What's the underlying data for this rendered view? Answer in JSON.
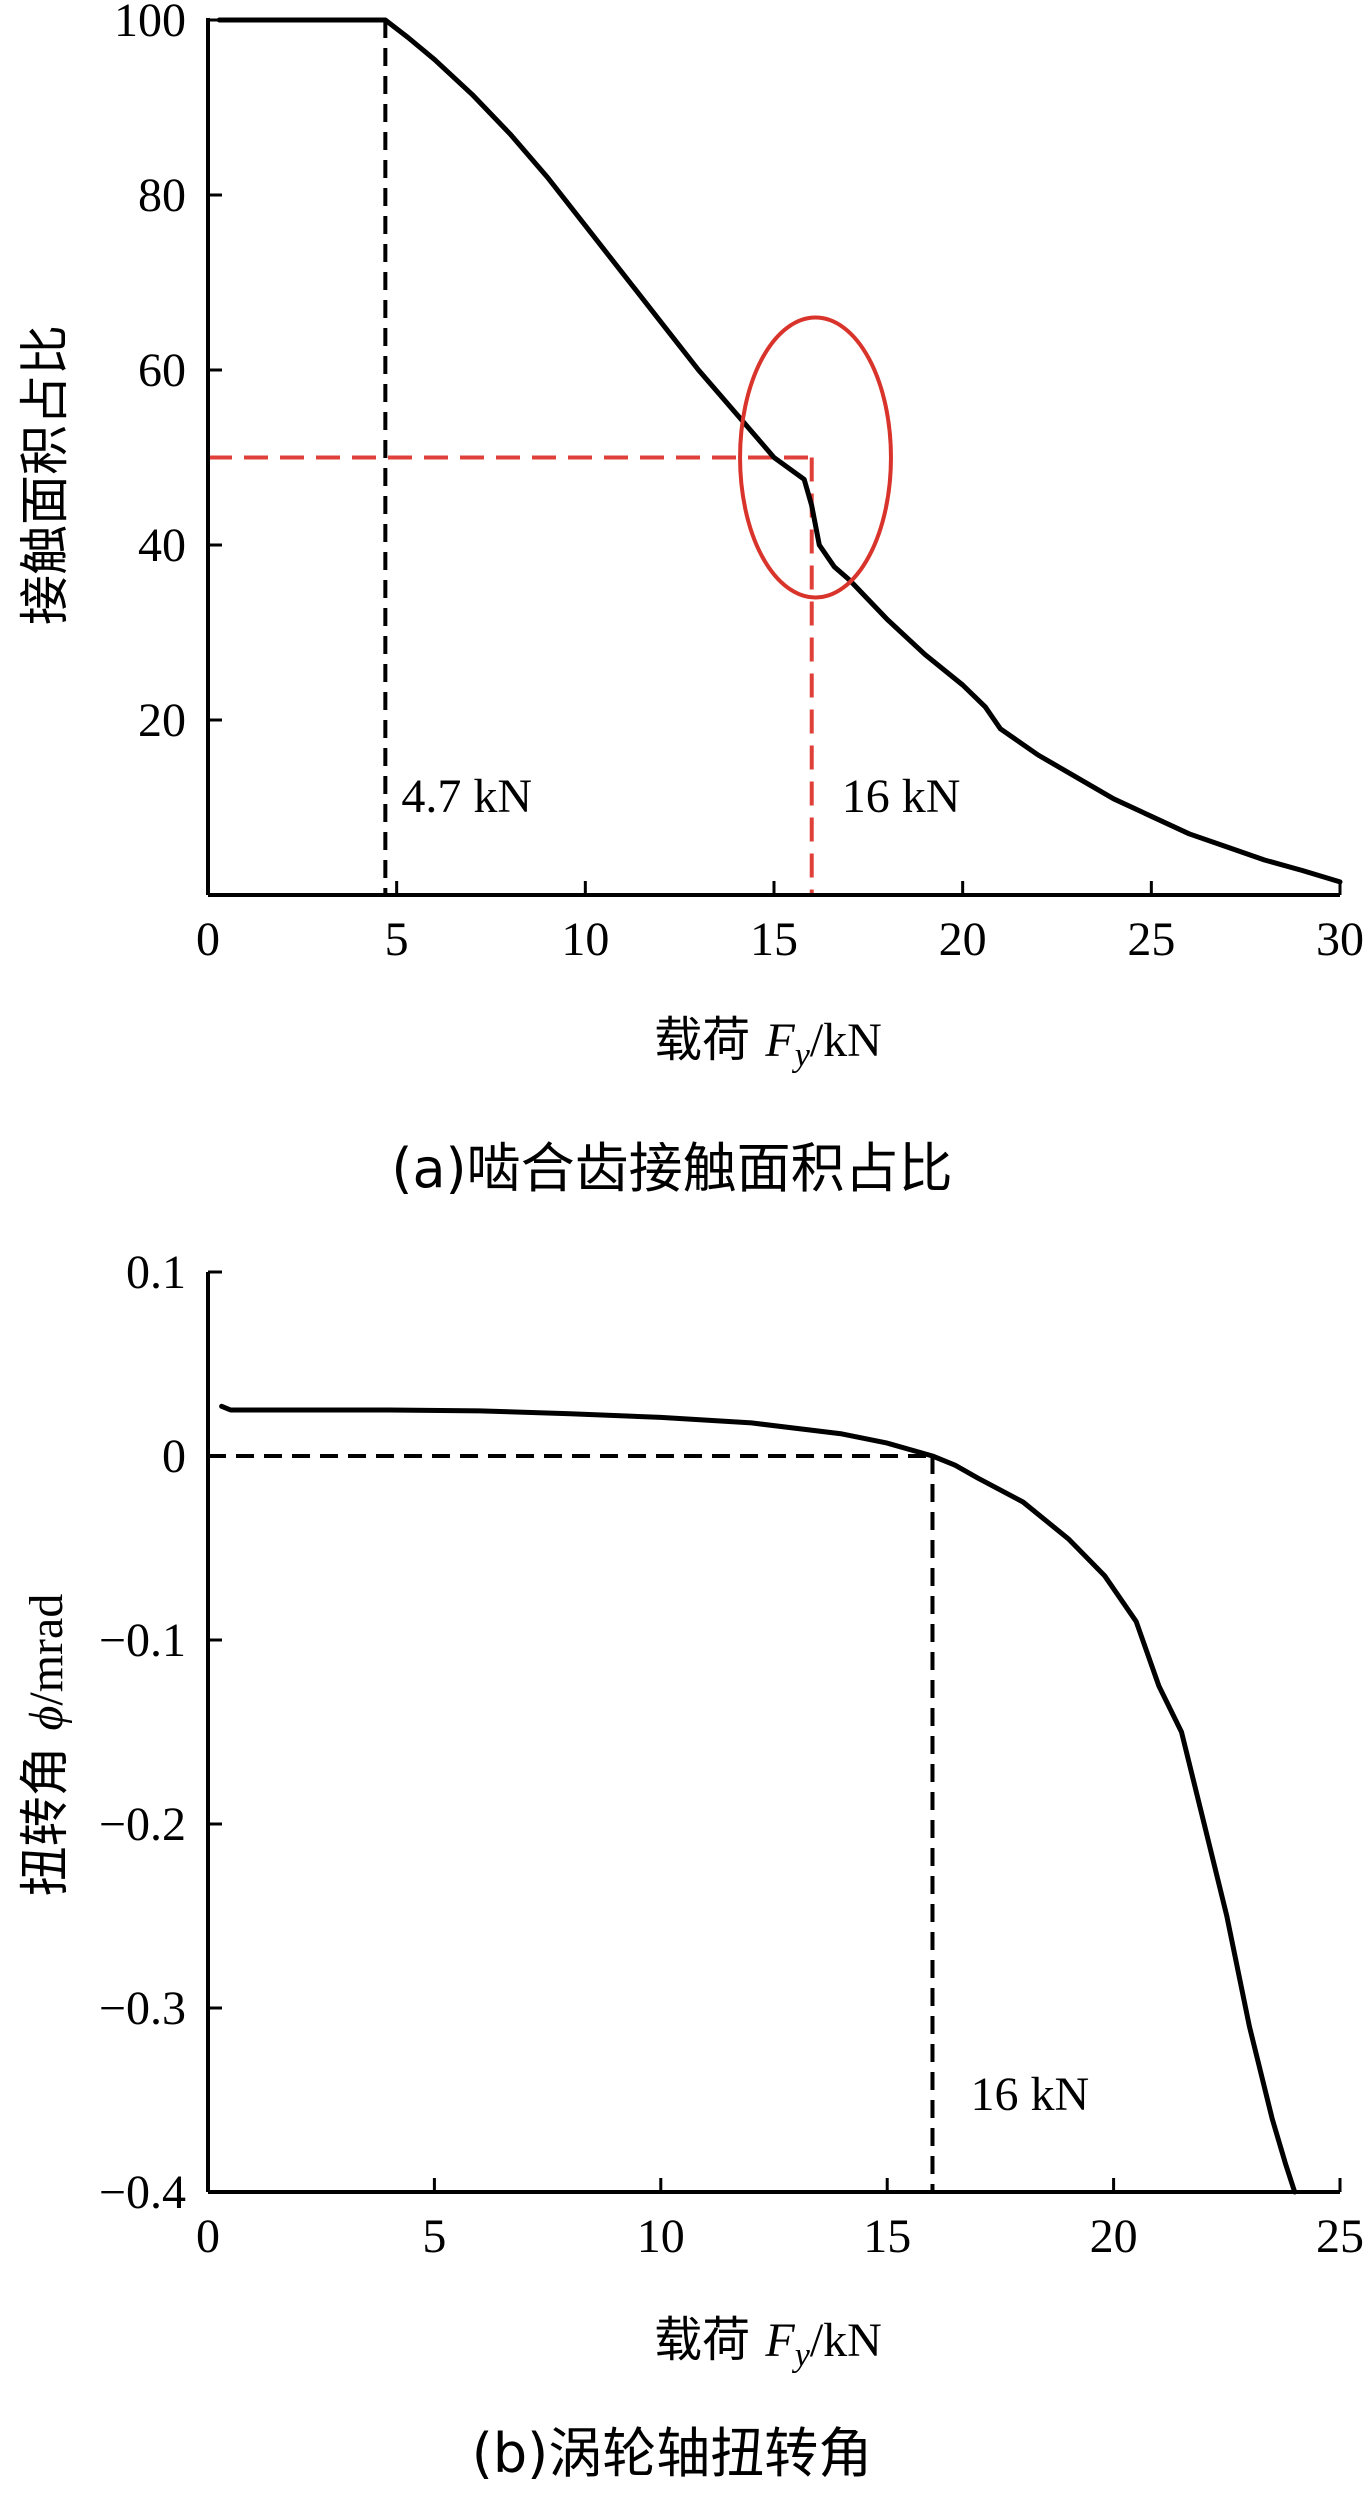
{
  "chart_data": [
    {
      "type": "line",
      "panel_caption": "(a)啮合齿接触面积占比",
      "ylabel": "接触面积占比",
      "xlabel_prefix": "载荷 ",
      "xlabel_var": "F",
      "xlabel_sub": "y",
      "xlabel_unit": "/kN",
      "xlim": [
        0,
        30
      ],
      "ylim": [
        0,
        100
      ],
      "xticks": [
        0,
        5,
        10,
        15,
        20,
        25,
        30
      ],
      "yticks": [
        20,
        40,
        60,
        80,
        100
      ],
      "series": [
        {
          "color": "#000000",
          "x": [
            0.3,
            4.7,
            5.3,
            6.0,
            7.0,
            8.0,
            9.0,
            10.0,
            11.0,
            12.0,
            13.0,
            14.0,
            15.0,
            15.8,
            16.0,
            16.2,
            16.6,
            17.0,
            18.0,
            19.0,
            20.0,
            20.6,
            21.0,
            21.5,
            22.0,
            23.0,
            24.0,
            25.0,
            26.0,
            27.0,
            28.0,
            29.0,
            30.0
          ],
          "y": [
            100,
            100,
            98.0,
            95.5,
            91.5,
            87.0,
            82.0,
            76.5,
            71.0,
            65.5,
            60.0,
            55.0,
            50.0,
            47.5,
            44.5,
            40.0,
            37.5,
            36.0,
            31.5,
            27.5,
            24.0,
            21.5,
            19.0,
            17.5,
            16.0,
            13.5,
            11.0,
            9.0,
            7.0,
            5.5,
            4.0,
            2.8,
            1.5
          ]
        }
      ],
      "marker_lines": [
        {
          "x": 4.7,
          "label": "4.7 kN",
          "color": "#000000"
        },
        {
          "x": 16,
          "y": 50,
          "label": "16 kN",
          "color": "#e0403a"
        }
      ],
      "highlight_ellipse": {
        "cx": 16.1,
        "cy": 50,
        "rx": 2.0,
        "ry": 16.0,
        "color": "#d9342b"
      }
    },
    {
      "type": "line",
      "panel_caption": "(b)涡轮轴扭转角",
      "ylabel_cjk": "扭转角 ",
      "ylabel_var": "ϕ",
      "ylabel_unit": "/mrad",
      "xlabel_prefix": "载荷 ",
      "xlabel_var": "F",
      "xlabel_sub": "y",
      "xlabel_unit": "/kN",
      "xlim": [
        0,
        25
      ],
      "ylim": [
        -0.4,
        0.1
      ],
      "xticks": [
        0,
        5,
        10,
        15,
        20,
        25
      ],
      "yticks": [
        0.1,
        0,
        -0.1,
        -0.2,
        -0.3,
        -0.4
      ],
      "ytick_labels": [
        "0.1",
        "0",
        "−0.1",
        "−0.2",
        "−0.3",
        "−0.4"
      ],
      "series": [
        {
          "color": "#000000",
          "x": [
            0.3,
            0.5,
            2,
            4,
            6,
            8,
            10,
            12,
            14,
            15,
            16,
            16.5,
            17,
            18,
            19,
            19.8,
            20.5,
            21.0,
            21.5,
            22.0,
            22.5,
            23.0,
            23.5,
            23.8,
            24.0
          ],
          "y": [
            0.027,
            0.025,
            0.025,
            0.025,
            0.0245,
            0.023,
            0.021,
            0.018,
            0.012,
            0.007,
            0.0,
            -0.005,
            -0.012,
            -0.025,
            -0.045,
            -0.065,
            -0.09,
            -0.125,
            -0.15,
            -0.2,
            -0.25,
            -0.31,
            -0.36,
            -0.385,
            -0.4
          ]
        }
      ],
      "marker_lines": [
        {
          "x": 16,
          "y": 0,
          "label": "16 kN",
          "color": "#000000"
        }
      ]
    }
  ]
}
